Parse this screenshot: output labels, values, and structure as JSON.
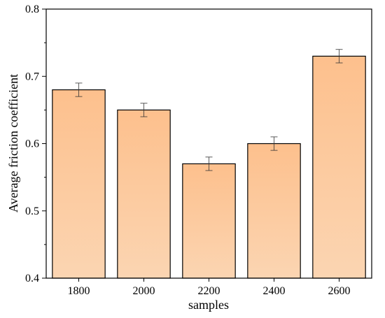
{
  "chart_data": {
    "type": "bar",
    "xlabel": "samples",
    "ylabel": "Average friction coefficient",
    "categories": [
      "1800",
      "2000",
      "2200",
      "2400",
      "2600"
    ],
    "values": [
      0.68,
      0.65,
      0.57,
      0.6,
      0.73
    ],
    "errors": [
      0.01,
      0.01,
      0.01,
      0.01,
      0.01
    ],
    "ylim": [
      0.4,
      0.8
    ],
    "yticks": [
      "0.4",
      "0.5",
      "0.6",
      "0.7",
      "0.8"
    ],
    "grid": false,
    "legend": "none",
    "bar_color_top": "#fdc08d",
    "bar_color_bottom": "#fbd5b2",
    "bar_edge_color": "#000000"
  }
}
